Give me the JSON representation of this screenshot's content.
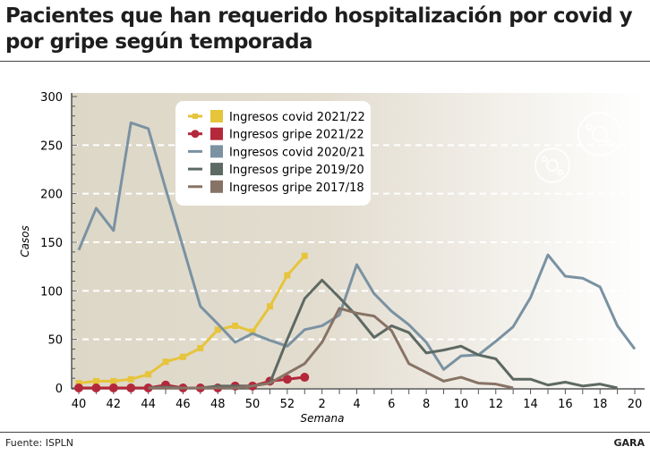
{
  "title": "Pacientes que han requerido hospitalización por covid y por gripe según temporada",
  "source": "Fuente: ISPLN",
  "brand": "GARA",
  "chart_data": {
    "type": "line",
    "title": "Pacientes que han requerido hospitalización por covid y por gripe según temporada",
    "xlabel": "Semana",
    "ylabel": "Casos",
    "ylim": [
      0,
      300
    ],
    "yticks": [
      0,
      50,
      100,
      150,
      200,
      250,
      300
    ],
    "grid": "horizontal dashed",
    "legend": "top-center",
    "weeks": [
      40,
      41,
      42,
      43,
      44,
      45,
      46,
      47,
      48,
      49,
      50,
      51,
      52,
      1,
      2,
      3,
      4,
      5,
      6,
      7,
      8,
      9,
      10,
      11,
      12,
      13,
      14,
      15,
      16,
      17,
      18,
      19,
      20
    ],
    "xtick_labels": [
      "40",
      "42",
      "44",
      "46",
      "48",
      "50",
      "52",
      "2",
      "4",
      "6",
      "8",
      "10",
      "12",
      "14",
      "16",
      "18",
      "20"
    ],
    "series": [
      {
        "name": "Ingresos covid 2021/22",
        "color": "#e6c43c",
        "marker": "square",
        "values": [
          5,
          7,
          7,
          9,
          14,
          27,
          32,
          41,
          60,
          64,
          58,
          84,
          116,
          136,
          null,
          null,
          null,
          null,
          null,
          null,
          null,
          null,
          null,
          null,
          null,
          null,
          null,
          null,
          null,
          null,
          null,
          null,
          null
        ]
      },
      {
        "name": "Ingresos gripe 2021/22",
        "color": "#b3283a",
        "marker": "circle",
        "values": [
          0,
          0,
          0,
          0,
          0,
          3,
          0,
          0,
          0,
          2,
          2,
          7,
          9,
          11,
          null,
          null,
          null,
          null,
          null,
          null,
          null,
          null,
          null,
          null,
          null,
          null,
          null,
          null,
          null,
          null,
          null,
          null,
          null
        ]
      },
      {
        "name": "Ingresos covid 2020/21",
        "color": "#7a92a2",
        "marker": "none",
        "values": [
          142,
          185,
          162,
          273,
          267,
          205,
          145,
          84,
          66,
          47,
          56,
          49,
          43,
          60,
          64,
          75,
          127,
          97,
          79,
          65,
          47,
          19,
          33,
          34,
          48,
          63,
          93,
          137,
          115,
          113,
          104,
          64,
          40
        ]
      },
      {
        "name": "Ingresos gripe 2019/20",
        "color": "#5d6963",
        "marker": "none",
        "values": [
          null,
          null,
          null,
          null,
          0,
          1,
          0,
          0,
          2,
          2,
          2,
          5,
          50,
          92,
          111,
          93,
          74,
          52,
          64,
          57,
          36,
          39,
          43,
          34,
          30,
          9,
          9,
          3,
          6,
          2,
          4,
          0,
          null
        ]
      },
      {
        "name": "Ingresos gripe 2017/18",
        "color": "#877365",
        "marker": "none",
        "values": [
          null,
          null,
          null,
          null,
          0,
          0,
          0,
          0,
          0,
          0,
          2,
          5,
          15,
          25,
          47,
          82,
          77,
          74,
          59,
          25,
          16,
          7,
          11,
          5,
          4,
          0,
          null,
          null,
          null,
          null,
          null,
          null,
          null
        ]
      }
    ]
  }
}
